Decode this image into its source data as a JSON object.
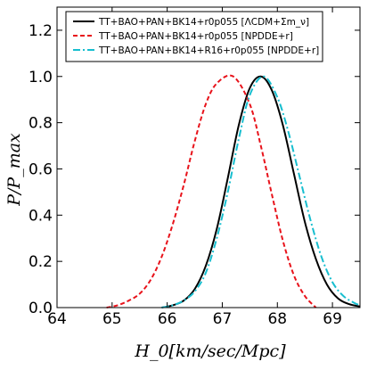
{
  "chart_data": {
    "type": "line",
    "xlabel": "H_0[km/sec/Mpc]",
    "ylabel": "P/P_max",
    "xlim": [
      64,
      69.5
    ],
    "ylim": [
      0,
      1.3
    ],
    "x_ticks": [
      "64",
      "65",
      "66",
      "67",
      "68",
      "69"
    ],
    "y_ticks": [
      "0.0",
      "0.2",
      "0.4",
      "0.6",
      "0.8",
      "1.0",
      "1.2"
    ],
    "legend_position": "top",
    "grid": false,
    "series": [
      {
        "name": "TT+BAO+PAN+BK14+r0p055 [ΛCDM+Σm_ν]",
        "color": "#000000",
        "style": "solid",
        "x": [
          65.9,
          66.1,
          66.3,
          66.5,
          66.7,
          66.9,
          67.1,
          67.3,
          67.5,
          67.7,
          67.9,
          68.1,
          68.3,
          68.5,
          68.7,
          68.9,
          69.1,
          69.3,
          69.5
        ],
        "y": [
          0.0,
          0.01,
          0.03,
          0.08,
          0.18,
          0.34,
          0.56,
          0.79,
          0.95,
          1.0,
          0.94,
          0.79,
          0.58,
          0.37,
          0.21,
          0.1,
          0.04,
          0.015,
          0.005
        ]
      },
      {
        "name": "TT+BAO+PAN+BK14+r0p055 [NPDDE+r]",
        "color": "#e8131b",
        "style": "dashed",
        "x": [
          64.9,
          65.1,
          65.3,
          65.5,
          65.7,
          65.9,
          66.1,
          66.3,
          66.5,
          66.7,
          66.9,
          67.2,
          67.5,
          67.7,
          67.9,
          68.1,
          68.3,
          68.5,
          68.7
        ],
        "y": [
          0.0,
          0.01,
          0.03,
          0.06,
          0.12,
          0.22,
          0.36,
          0.53,
          0.72,
          0.88,
          0.97,
          1.0,
          0.88,
          0.7,
          0.49,
          0.29,
          0.14,
          0.05,
          0.0
        ]
      },
      {
        "name": "TT+BAO+PAN+BK14+R16+r0p055 [NPDDE+r]",
        "color": "#17becf",
        "style": "dashdot",
        "x": [
          65.9,
          66.1,
          66.3,
          66.5,
          66.7,
          66.9,
          67.1,
          67.3,
          67.5,
          67.75,
          68.0,
          68.2,
          68.4,
          68.6,
          68.8,
          69.0,
          69.2,
          69.4,
          69.5
        ],
        "y": [
          0.0,
          0.01,
          0.03,
          0.07,
          0.15,
          0.3,
          0.5,
          0.73,
          0.92,
          1.0,
          0.91,
          0.76,
          0.57,
          0.38,
          0.22,
          0.11,
          0.05,
          0.02,
          0.01
        ]
      }
    ]
  }
}
